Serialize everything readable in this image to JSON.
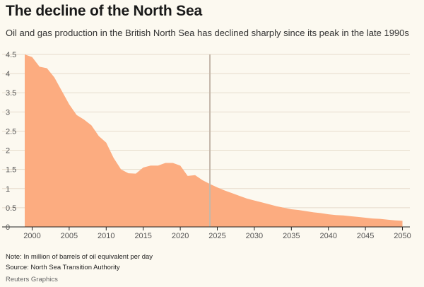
{
  "title": "The decline of the North Sea",
  "subtitle": "Oil and gas production in the British North Sea has declined sharply since its peak in the late 1990s",
  "footer": {
    "note": "Note: In million of barrels of oil equivalent per day",
    "source": "Source: North Sea Transition Authority",
    "credit": "Reuters Graphics"
  },
  "colors": {
    "area": "#fcac80",
    "marker": "#c5b8aa",
    "grid": "#e6dccc",
    "background": "#fcf9f0"
  },
  "chart_data": {
    "type": "area",
    "title": "The decline of the North Sea",
    "xlabel": "",
    "ylabel": "",
    "xlim": [
      1999,
      2051
    ],
    "ylim": [
      0,
      4.5
    ],
    "x_ticks": [
      2000,
      2005,
      2010,
      2015,
      2020,
      2025,
      2030,
      2035,
      2040,
      2045,
      2050
    ],
    "y_ticks": [
      0,
      0.5,
      1,
      1.5,
      2,
      2.5,
      3,
      3.5,
      4,
      4.5
    ],
    "y_tick_labels": [
      "0",
      "0.5",
      "1",
      "1.5",
      "2",
      "2.5",
      "3",
      "3.5",
      "4",
      "4.5"
    ],
    "vertical_marker_x": 2024,
    "grid": "horizontal",
    "legend": "none",
    "series": [
      {
        "x": [
          1999,
          2000,
          2001,
          2002,
          2003,
          2004,
          2005,
          2006,
          2007,
          2008,
          2009,
          2010,
          2011,
          2012,
          2013,
          2014,
          2015,
          2016,
          2017,
          2018,
          2019,
          2020,
          2021,
          2022,
          2023,
          2024,
          2025,
          2026,
          2027,
          2028,
          2029,
          2030,
          2031,
          2032,
          2033,
          2034,
          2035,
          2036,
          2037,
          2038,
          2039,
          2040,
          2041,
          2042,
          2043,
          2044,
          2045,
          2046,
          2047,
          2048,
          2049,
          2050
        ],
        "values": [
          4.5,
          4.43,
          4.18,
          4.14,
          3.9,
          3.55,
          3.2,
          2.92,
          2.8,
          2.65,
          2.37,
          2.2,
          1.8,
          1.5,
          1.4,
          1.39,
          1.55,
          1.6,
          1.6,
          1.67,
          1.67,
          1.6,
          1.33,
          1.35,
          1.22,
          1.12,
          1.03,
          0.95,
          0.88,
          0.81,
          0.74,
          0.69,
          0.64,
          0.59,
          0.54,
          0.5,
          0.46,
          0.44,
          0.41,
          0.38,
          0.36,
          0.33,
          0.31,
          0.3,
          0.28,
          0.26,
          0.24,
          0.22,
          0.21,
          0.19,
          0.17,
          0.16
        ]
      }
    ]
  }
}
